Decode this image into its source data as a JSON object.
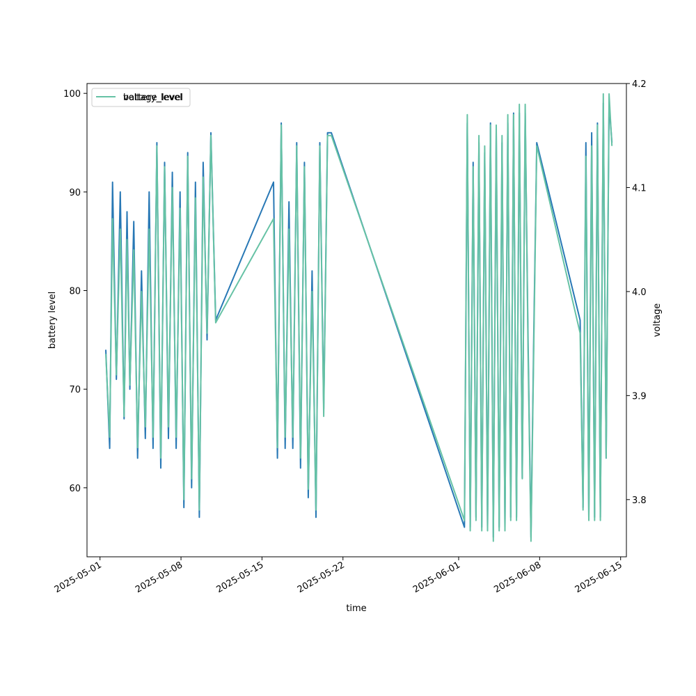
{
  "chart_data": {
    "type": "line",
    "xlabel": "time",
    "ylabel_left": "battery level",
    "ylabel_right": "voltage",
    "xlim": [
      "2025-04-29T21:00",
      "2025-06-15T12:00"
    ],
    "ylim_left": [
      53,
      101
    ],
    "ylim_right": [
      3.745,
      4.2
    ],
    "x_ticks": [
      "2025-05-01",
      "2025-05-08",
      "2025-05-15",
      "2025-05-22",
      "2025-06-01",
      "2025-06-08",
      "2025-06-15"
    ],
    "y_ticks_left": [
      60,
      70,
      80,
      90,
      100
    ],
    "y_ticks_right": [
      3.8,
      3.9,
      4.0,
      4.1,
      4.2
    ],
    "legend": {
      "location": "upper left",
      "entries": [
        "battery_level",
        "voltage_level"
      ]
    },
    "series": [
      {
        "name": "battery_level",
        "axis": "left",
        "color": "#2878b5",
        "x": [
          "2025-05-01T12:00",
          "2025-05-01T20:00",
          "2025-05-02T02:00",
          "2025-05-02T10:00",
          "2025-05-02T18:00",
          "2025-05-03T02:00",
          "2025-05-03T08:00",
          "2025-05-03T14:00",
          "2025-05-03T22:00",
          "2025-05-04T06:00",
          "2025-05-04T14:00",
          "2025-05-04T22:00",
          "2025-05-05T06:00",
          "2025-05-05T14:00",
          "2025-05-05T22:00",
          "2025-05-06T06:00",
          "2025-05-06T14:00",
          "2025-05-06T22:00",
          "2025-05-07T06:00",
          "2025-05-07T14:00",
          "2025-05-07T22:00",
          "2025-05-08T06:00",
          "2025-05-08T14:00",
          "2025-05-08T22:00",
          "2025-05-09T06:00",
          "2025-05-09T14:00",
          "2025-05-09T22:00",
          "2025-05-10T06:00",
          "2025-05-10T14:00",
          "2025-05-11T00:00",
          "2025-05-16T00:00",
          "2025-05-16T08:00",
          "2025-05-16T16:00",
          "2025-05-17T00:00",
          "2025-05-17T08:00",
          "2025-05-17T16:00",
          "2025-05-18T00:00",
          "2025-05-18T08:00",
          "2025-05-18T16:00",
          "2025-05-19T00:00",
          "2025-05-19T08:00",
          "2025-05-19T16:00",
          "2025-05-20T00:00",
          "2025-05-20T08:00",
          "2025-05-20T16:00",
          "2025-05-21T00:00",
          "2025-06-01T12:00",
          "2025-06-01T18:00",
          "2025-06-02T00:00",
          "2025-06-02T06:00",
          "2025-06-02T12:00",
          "2025-06-02T18:00",
          "2025-06-03T00:00",
          "2025-06-03T06:00",
          "2025-06-03T12:00",
          "2025-06-03T18:00",
          "2025-06-04T00:00",
          "2025-06-04T06:00",
          "2025-06-04T12:00",
          "2025-06-04T18:00",
          "2025-06-05T00:00",
          "2025-06-05T06:00",
          "2025-06-05T12:00",
          "2025-06-05T18:00",
          "2025-06-06T00:00",
          "2025-06-06T06:00",
          "2025-06-06T12:00",
          "2025-06-06T18:00",
          "2025-06-07T00:00",
          "2025-06-07T06:00",
          "2025-06-07T12:00",
          "2025-06-07T18:00",
          "2025-06-11T12:00",
          "2025-06-11T18:00",
          "2025-06-12T00:00",
          "2025-06-12T06:00",
          "2025-06-12T12:00",
          "2025-06-12T18:00",
          "2025-06-13T00:00",
          "2025-06-13T06:00",
          "2025-06-13T12:00",
          "2025-06-13T18:00",
          "2025-06-14T00:00",
          "2025-06-14T06:00"
        ],
        "values": [
          74,
          64,
          91,
          71,
          90,
          67,
          88,
          70,
          87,
          63,
          82,
          65,
          90,
          64,
          95,
          62,
          93,
          65,
          92,
          64,
          90,
          58,
          94,
          60,
          91,
          57,
          93,
          75,
          96,
          77,
          91,
          63,
          97,
          64,
          89,
          64,
          95,
          62,
          93,
          59,
          82,
          57,
          95,
          68,
          96,
          96,
          56,
          97,
          56,
          93,
          57,
          95,
          56,
          94,
          56,
          97,
          55,
          96,
          56,
          95,
          56,
          97,
          57,
          98,
          57,
          98,
          61,
          98,
          75,
          55,
          76,
          95,
          77,
          58,
          95,
          57,
          96,
          57,
          97,
          57,
          99,
          63,
          99,
          95
        ],
        "y": [
          74,
          64,
          91,
          71,
          90,
          67,
          88,
          70,
          87,
          63,
          82,
          65,
          90,
          64,
          95,
          62,
          93,
          65,
          92,
          64,
          90,
          58,
          94,
          60,
          91,
          57,
          93,
          75,
          96,
          77,
          91,
          63,
          97,
          64,
          89,
          64,
          95,
          62,
          93,
          59,
          82,
          57,
          95,
          68,
          96,
          96,
          56,
          97,
          56,
          93,
          57,
          95,
          56,
          94,
          56,
          97,
          55,
          96,
          56,
          95,
          56,
          97,
          57,
          98,
          57,
          98,
          61,
          98,
          75,
          55,
          76,
          95,
          77,
          58,
          95,
          57,
          96,
          57,
          97,
          57,
          99,
          63,
          99,
          95
        ]
      },
      {
        "name": "voltage_level",
        "axis": "right",
        "color": "#66c2a5",
        "x": [
          "2025-05-01T12:00",
          "2025-05-01T20:00",
          "2025-05-02T02:00",
          "2025-05-02T10:00",
          "2025-05-02T18:00",
          "2025-05-03T02:00",
          "2025-05-03T08:00",
          "2025-05-03T14:00",
          "2025-05-03T22:00",
          "2025-05-04T06:00",
          "2025-05-04T14:00",
          "2025-05-04T22:00",
          "2025-05-05T06:00",
          "2025-05-05T14:00",
          "2025-05-05T22:00",
          "2025-05-06T06:00",
          "2025-05-06T14:00",
          "2025-05-06T22:00",
          "2025-05-07T06:00",
          "2025-05-07T14:00",
          "2025-05-07T22:00",
          "2025-05-08T06:00",
          "2025-05-08T14:00",
          "2025-05-08T22:00",
          "2025-05-09T06:00",
          "2025-05-09T14:00",
          "2025-05-09T22:00",
          "2025-05-10T06:00",
          "2025-05-10T14:00",
          "2025-05-11T00:00",
          "2025-05-16T00:00",
          "2025-05-16T08:00",
          "2025-05-16T16:00",
          "2025-05-17T00:00",
          "2025-05-17T08:00",
          "2025-05-17T16:00",
          "2025-05-18T00:00",
          "2025-05-18T08:00",
          "2025-05-18T16:00",
          "2025-05-19T00:00",
          "2025-05-19T08:00",
          "2025-05-19T16:00",
          "2025-05-20T00:00",
          "2025-05-20T08:00",
          "2025-05-20T16:00",
          "2025-05-21T00:00",
          "2025-06-01T12:00",
          "2025-06-01T18:00",
          "2025-06-02T00:00",
          "2025-06-02T06:00",
          "2025-06-02T12:00",
          "2025-06-02T18:00",
          "2025-06-03T00:00",
          "2025-06-03T06:00",
          "2025-06-03T12:00",
          "2025-06-03T18:00",
          "2025-06-04T00:00",
          "2025-06-04T06:00",
          "2025-06-04T12:00",
          "2025-06-04T18:00",
          "2025-06-05T00:00",
          "2025-06-05T06:00",
          "2025-06-05T12:00",
          "2025-06-05T18:00",
          "2025-06-06T00:00",
          "2025-06-06T06:00",
          "2025-06-06T12:00",
          "2025-06-06T18:00",
          "2025-06-07T00:00",
          "2025-06-07T06:00",
          "2025-06-07T12:00",
          "2025-06-07T18:00",
          "2025-06-11T12:00",
          "2025-06-11T18:00",
          "2025-06-12T00:00",
          "2025-06-12T06:00",
          "2025-06-12T12:00",
          "2025-06-12T18:00",
          "2025-06-13T00:00",
          "2025-06-13T06:00",
          "2025-06-13T12:00",
          "2025-06-13T18:00",
          "2025-06-14T00:00",
          "2025-06-14T06:00"
        ],
        "values": [
          3.94,
          3.86,
          4.07,
          3.92,
          4.06,
          3.88,
          4.05,
          3.91,
          4.04,
          3.85,
          4.0,
          3.87,
          4.06,
          3.86,
          4.14,
          3.84,
          4.12,
          3.87,
          4.1,
          3.86,
          4.08,
          3.8,
          4.13,
          3.82,
          4.09,
          3.79,
          4.11,
          3.96,
          4.15,
          3.97,
          4.07,
          3.85,
          4.16,
          3.86,
          4.06,
          3.86,
          4.14,
          3.84,
          4.12,
          3.81,
          4.0,
          3.79,
          4.14,
          3.88,
          4.15,
          4.15,
          3.78,
          4.17,
          3.77,
          4.12,
          3.78,
          4.15,
          3.77,
          4.14,
          3.77,
          4.16,
          3.76,
          4.16,
          3.77,
          4.15,
          3.77,
          4.17,
          3.78,
          4.17,
          3.78,
          4.18,
          3.82,
          4.18,
          3.94,
          3.76,
          3.95,
          4.14,
          3.96,
          3.79,
          4.13,
          3.78,
          4.14,
          3.78,
          4.16,
          3.78,
          4.19,
          3.84,
          4.19,
          4.14
        ],
        "y": [
          3.94,
          3.86,
          4.07,
          3.92,
          4.06,
          3.88,
          4.05,
          3.91,
          4.04,
          3.85,
          4.0,
          3.87,
          4.06,
          3.86,
          4.14,
          3.84,
          4.12,
          3.87,
          4.1,
          3.86,
          4.08,
          3.8,
          4.13,
          3.82,
          4.09,
          3.79,
          4.11,
          3.96,
          4.15,
          3.97,
          4.07,
          3.85,
          4.16,
          3.86,
          4.06,
          3.86,
          4.14,
          3.84,
          4.12,
          3.81,
          4.0,
          3.79,
          4.14,
          3.88,
          4.15,
          4.15,
          3.78,
          4.17,
          3.77,
          4.12,
          3.78,
          4.15,
          3.77,
          4.14,
          3.77,
          4.16,
          3.76,
          4.16,
          3.77,
          4.15,
          3.77,
          4.17,
          3.78,
          4.17,
          3.78,
          4.18,
          3.82,
          4.18,
          3.94,
          3.76,
          3.95,
          4.14,
          3.96,
          3.79,
          4.13,
          3.78,
          4.14,
          3.78,
          4.16,
          3.78,
          4.19,
          3.84,
          4.19,
          4.14
        ]
      }
    ]
  }
}
